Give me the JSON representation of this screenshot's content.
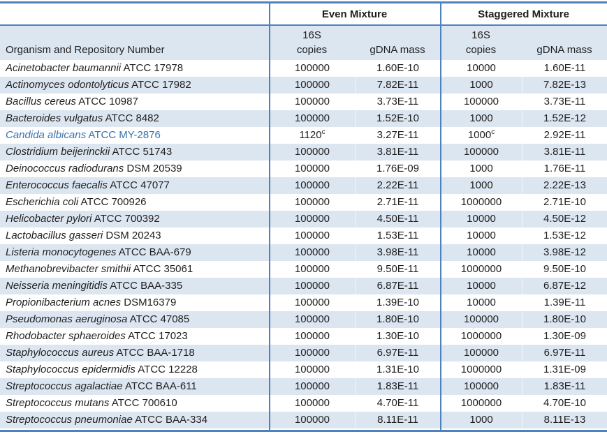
{
  "colors": {
    "accent": "#4F81BD",
    "band": "#DCE6F1",
    "text": "#1f1f1f",
    "highlight": "#3A71AD"
  },
  "table": {
    "group_headers": {
      "even": "Even Mixture",
      "staggered": "Staggered Mixture"
    },
    "column_headers": {
      "organism": "Organism and Repository Number",
      "copies_top": "16S",
      "copies_bottom": "copies",
      "gdna": "gDNA mass"
    },
    "rows": [
      {
        "name": "Acinetobacter baumannii",
        "id": "ATCC 17978",
        "even_copies": "100000",
        "even_sup": "",
        "even_gdna": "1.60E-10",
        "stag_copies": "10000",
        "stag_sup": "",
        "stag_gdna": "1.60E-11",
        "accent": false
      },
      {
        "name": "Actinomyces odontolyticus",
        "id": "ATCC 17982",
        "even_copies": "100000",
        "even_sup": "",
        "even_gdna": "7.82E-11",
        "stag_copies": "1000",
        "stag_sup": "",
        "stag_gdna": "7.82E-13",
        "accent": false
      },
      {
        "name": "Bacillus cereus",
        "id": "ATCC 10987",
        "even_copies": "100000",
        "even_sup": "",
        "even_gdna": "3.73E-11",
        "stag_copies": "100000",
        "stag_sup": "",
        "stag_gdna": "3.73E-11",
        "accent": false
      },
      {
        "name": "Bacteroides vulgatus",
        "id": "ATCC 8482",
        "even_copies": "100000",
        "even_sup": "",
        "even_gdna": "1.52E-10",
        "stag_copies": "1000",
        "stag_sup": "",
        "stag_gdna": "1.52E-12",
        "accent": false
      },
      {
        "name": "Candida albicans",
        "id": "ATCC MY-2876",
        "even_copies": "1120",
        "even_sup": "c",
        "even_gdna": "3.27E-11",
        "stag_copies": "1000",
        "stag_sup": "c",
        "stag_gdna": "2.92E-11",
        "accent": true
      },
      {
        "name": "Clostridium beijerinckii",
        "id": "ATCC 51743",
        "even_copies": "100000",
        "even_sup": "",
        "even_gdna": "3.81E-11",
        "stag_copies": "100000",
        "stag_sup": "",
        "stag_gdna": "3.81E-11",
        "accent": false
      },
      {
        "name": "Deinococcus radiodurans",
        "id": "DSM 20539",
        "even_copies": "100000",
        "even_sup": "",
        "even_gdna": "1.76E-09",
        "stag_copies": "1000",
        "stag_sup": "",
        "stag_gdna": "1.76E-11",
        "accent": false
      },
      {
        "name": "Enterococcus faecalis",
        "id": "ATCC 47077",
        "even_copies": "100000",
        "even_sup": "",
        "even_gdna": "2.22E-11",
        "stag_copies": "1000",
        "stag_sup": "",
        "stag_gdna": "2.22E-13",
        "accent": false
      },
      {
        "name": "Escherichia coli",
        "id": "ATCC 700926",
        "even_copies": "100000",
        "even_sup": "",
        "even_gdna": "2.71E-11",
        "stag_copies": "1000000",
        "stag_sup": "",
        "stag_gdna": "2.71E-10",
        "accent": false
      },
      {
        "name": "Helicobacter pylori",
        "id": "ATCC 700392",
        "even_copies": "100000",
        "even_sup": "",
        "even_gdna": "4.50E-11",
        "stag_copies": "10000",
        "stag_sup": "",
        "stag_gdna": "4.50E-12",
        "accent": false
      },
      {
        "name": "Lactobacillus gasseri",
        "id": "DSM 20243",
        "even_copies": "100000",
        "even_sup": "",
        "even_gdna": "1.53E-11",
        "stag_copies": "10000",
        "stag_sup": "",
        "stag_gdna": "1.53E-12",
        "accent": false
      },
      {
        "name": "Listeria monocytogenes",
        "id": "ATCC BAA-679",
        "even_copies": "100000",
        "even_sup": "",
        "even_gdna": "3.98E-11",
        "stag_copies": "10000",
        "stag_sup": "",
        "stag_gdna": "3.98E-12",
        "accent": false
      },
      {
        "name": "Methanobrevibacter smithii",
        "id": "ATCC 35061",
        "even_copies": "100000",
        "even_sup": "",
        "even_gdna": "9.50E-11",
        "stag_copies": "1000000",
        "stag_sup": "",
        "stag_gdna": "9.50E-10",
        "accent": false
      },
      {
        "name": "Neisseria meningitidis",
        "id": "ATCC BAA-335",
        "even_copies": "100000",
        "even_sup": "",
        "even_gdna": "6.87E-11",
        "stag_copies": "10000",
        "stag_sup": "",
        "stag_gdna": "6.87E-12",
        "accent": false
      },
      {
        "name": "Propionibacterium acnes",
        "id": "DSM16379",
        "even_copies": "100000",
        "even_sup": "",
        "even_gdna": "1.39E-10",
        "stag_copies": "10000",
        "stag_sup": "",
        "stag_gdna": "1.39E-11",
        "accent": false
      },
      {
        "name": "Pseudomonas aeruginosa",
        "id": "ATCC 47085",
        "even_copies": "100000",
        "even_sup": "",
        "even_gdna": "1.80E-10",
        "stag_copies": "100000",
        "stag_sup": "",
        "stag_gdna": "1.80E-10",
        "accent": false
      },
      {
        "name": "Rhodobacter sphaeroides",
        "id": "ATCC 17023",
        "even_copies": "100000",
        "even_sup": "",
        "even_gdna": "1.30E-10",
        "stag_copies": "1000000",
        "stag_sup": "",
        "stag_gdna": "1.30E-09",
        "accent": false
      },
      {
        "name": "Staphylococcus aureus",
        "id": "ATCC BAA-1718",
        "even_copies": "100000",
        "even_sup": "",
        "even_gdna": "6.97E-11",
        "stag_copies": "100000",
        "stag_sup": "",
        "stag_gdna": "6.97E-11",
        "accent": false
      },
      {
        "name": "Staphylococcus epidermidis",
        "id": "ATCC 12228",
        "even_copies": "100000",
        "even_sup": "",
        "even_gdna": "1.31E-10",
        "stag_copies": "1000000",
        "stag_sup": "",
        "stag_gdna": "1.31E-09",
        "accent": false
      },
      {
        "name": "Streptococcus agalactiae",
        "id": "ATCC BAA-611",
        "even_copies": "100000",
        "even_sup": "",
        "even_gdna": "1.83E-11",
        "stag_copies": "100000",
        "stag_sup": "",
        "stag_gdna": "1.83E-11",
        "accent": false
      },
      {
        "name": "Streptococcus mutans",
        "id": "ATCC 700610",
        "even_copies": "100000",
        "even_sup": "",
        "even_gdna": "4.70E-11",
        "stag_copies": "1000000",
        "stag_sup": "",
        "stag_gdna": "4.70E-10",
        "accent": false
      },
      {
        "name": "Streptococcus pneumoniae",
        "id": "ATCC BAA-334",
        "even_copies": "100000",
        "even_sup": "",
        "even_gdna": "8.11E-11",
        "stag_copies": "1000",
        "stag_sup": "",
        "stag_gdna": "8.11E-13",
        "accent": false
      }
    ]
  }
}
